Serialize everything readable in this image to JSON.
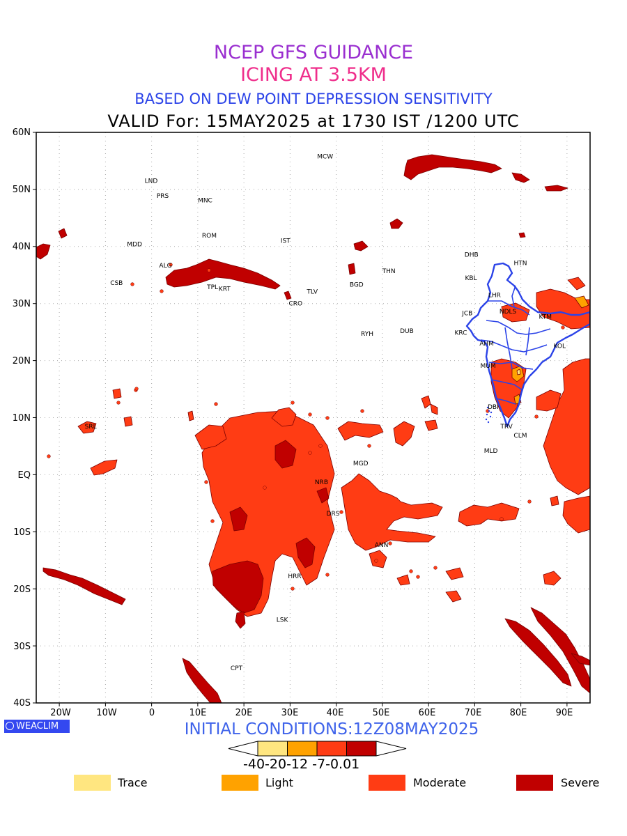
{
  "title_line1": "NCEP GFS GUIDANCE",
  "title_line2": "ICING AT 3.5KM",
  "title_line3": "BASED ON DEW POINT DEPRESSION SENSITIVITY",
  "title_line4": "VALID For: 15MAY2025 at 1730 IST /1200 UTC",
  "initial_conditions": "INITIAL CONDITIONS:12Z08MAY2025",
  "logo_text": "WEACLIM",
  "lat_labels": [
    "60N",
    "50N",
    "40N",
    "30N",
    "20N",
    "10N",
    "EQ",
    "10S",
    "20S",
    "30S",
    "40S"
  ],
  "lon_labels": [
    "20W",
    "10W",
    "0",
    "10E",
    "20E",
    "30E",
    "40E",
    "50E",
    "60E",
    "70E",
    "80E",
    "90E"
  ],
  "colorbar": {
    "labels": "-40-20-12 -7-0.01",
    "colors": [
      "#ffe680",
      "#ffa200",
      "#ff3c14",
      "#c00000"
    ]
  },
  "legend": [
    {
      "label": "Trace",
      "color": "#ffe680"
    },
    {
      "label": "Light",
      "color": "#ffa200"
    },
    {
      "label": "Moderate",
      "color": "#ff3c14"
    },
    {
      "label": "Severe",
      "color": "#c00000"
    }
  ],
  "colors": {
    "title1": "#9a2fd0",
    "title2": "#ef2d8b",
    "title3": "#2b43e8",
    "boundary": "#2b43e8"
  },
  "stations": [
    {
      "name": "MCW",
      "lon": 37.6,
      "lat": 55.8
    },
    {
      "name": "LND",
      "lon": -0.1,
      "lat": 51.5
    },
    {
      "name": "PRS",
      "lon": 2.4,
      "lat": 48.9
    },
    {
      "name": "MNC",
      "lon": 11.6,
      "lat": 48.1
    },
    {
      "name": "ROM",
      "lon": 12.5,
      "lat": 41.9
    },
    {
      "name": "IST",
      "lon": 29.0,
      "lat": 41.0
    },
    {
      "name": "MDD",
      "lon": -3.7,
      "lat": 40.4
    },
    {
      "name": "ALG",
      "lon": 3.0,
      "lat": 36.7
    },
    {
      "name": "CSB",
      "lon": -7.6,
      "lat": 33.6
    },
    {
      "name": "TPL",
      "lon": 13.2,
      "lat": 32.9
    },
    {
      "name": "KRT",
      "lon": 15.8,
      "lat": 32.6
    },
    {
      "name": "TLV",
      "lon": 34.8,
      "lat": 32.1
    },
    {
      "name": "CRO",
      "lon": 31.2,
      "lat": 30.0
    },
    {
      "name": "BGD",
      "lon": 44.4,
      "lat": 33.3
    },
    {
      "name": "THN",
      "lon": 51.4,
      "lat": 35.7
    },
    {
      "name": "RYH",
      "lon": 46.7,
      "lat": 24.7
    },
    {
      "name": "DUB",
      "lon": 55.3,
      "lat": 25.2
    },
    {
      "name": "DHB",
      "lon": 69.3,
      "lat": 38.6
    },
    {
      "name": "HTN",
      "lon": 79.9,
      "lat": 37.1
    },
    {
      "name": "KBL",
      "lon": 69.2,
      "lat": 34.5
    },
    {
      "name": "LHR",
      "lon": 74.3,
      "lat": 31.5
    },
    {
      "name": "JCB",
      "lon": 68.4,
      "lat": 28.3
    },
    {
      "name": "NDLS",
      "lon": 77.2,
      "lat": 28.6
    },
    {
      "name": "KTM",
      "lon": 85.3,
      "lat": 27.7
    },
    {
      "name": "KRC",
      "lon": 67.0,
      "lat": 24.9
    },
    {
      "name": "AHM",
      "lon": 72.6,
      "lat": 23.0
    },
    {
      "name": "KOL",
      "lon": 88.4,
      "lat": 22.6
    },
    {
      "name": "MUM",
      "lon": 72.9,
      "lat": 19.1
    },
    {
      "name": "DBI",
      "lon": 74.0,
      "lat": 11.9
    },
    {
      "name": "TRV",
      "lon": 76.9,
      "lat": 8.5
    },
    {
      "name": "CLM",
      "lon": 79.9,
      "lat": 6.9
    },
    {
      "name": "SRL",
      "lon": -13.2,
      "lat": 8.5
    },
    {
      "name": "MGD",
      "lon": 45.3,
      "lat": 2.0
    },
    {
      "name": "MLD",
      "lon": 73.5,
      "lat": 4.2
    },
    {
      "name": "NRB",
      "lon": 36.8,
      "lat": -1.3
    },
    {
      "name": "DRS",
      "lon": 39.3,
      "lat": -6.8
    },
    {
      "name": "ANN",
      "lon": 49.8,
      "lat": -12.3
    },
    {
      "name": "HRR",
      "lon": 31.0,
      "lat": -17.8
    },
    {
      "name": "LSK",
      "lon": 28.3,
      "lat": -25.4
    },
    {
      "name": "CPT",
      "lon": 18.4,
      "lat": -33.9
    }
  ]
}
